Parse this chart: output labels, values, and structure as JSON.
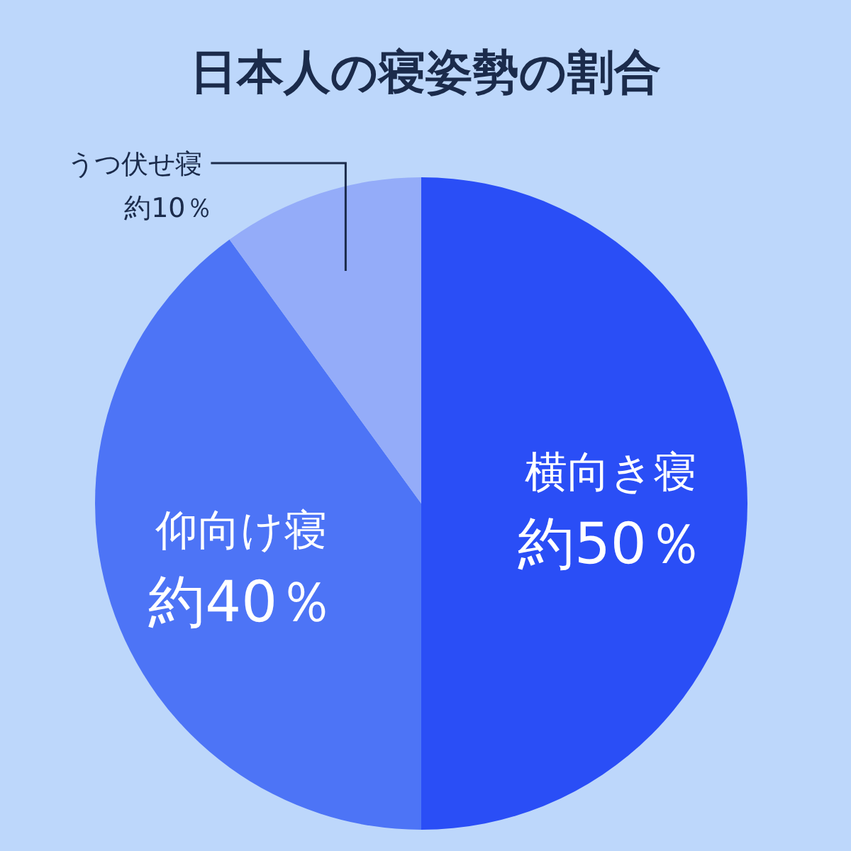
{
  "chart_data": {
    "type": "pie",
    "title": "日本人の寝姿勢の割合",
    "categories": [
      "横向き寝",
      "仰向け寝",
      "うつ伏せ寝"
    ],
    "values": [
      50,
      40,
      10
    ],
    "colors": [
      "#2a4ef6",
      "#4d74f6",
      "#94acf9"
    ],
    "value_labels": [
      "約50％",
      "約40％",
      "約10％"
    ]
  }
}
